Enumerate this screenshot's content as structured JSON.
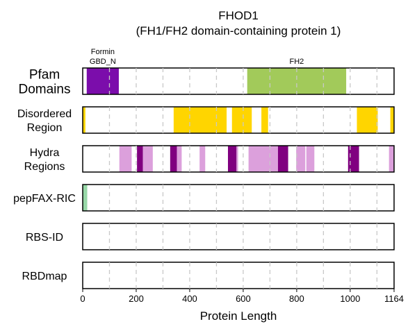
{
  "chart_data": {
    "type": "bar",
    "title": "FHOD1",
    "subtitle": "(FH1/FH2 domain-containing protein 1)",
    "xlabel": "Protein Length",
    "xlim": [
      0,
      1164
    ],
    "x_ticks": [
      "0",
      "200",
      "400",
      "600",
      "800",
      "1000",
      "1164"
    ],
    "x_tick_values": [
      0,
      200,
      400,
      600,
      800,
      1000,
      1164
    ],
    "grid_values": [
      100,
      200,
      300,
      400,
      500,
      600,
      700,
      800,
      900,
      1000,
      1100
    ],
    "grid": true,
    "tracks": [
      {
        "label_lines": [
          "Pfam",
          "Domains"
        ],
        "large": true,
        "segments": [
          {
            "start": 15,
            "end": 135,
            "color": "#7B0DAB",
            "label_lines": [
              "Formin",
              "GBD_N"
            ]
          },
          {
            "start": 615,
            "end": 985,
            "color": "#A2CA5A",
            "label_lines": [
              "FH2"
            ]
          }
        ]
      },
      {
        "label_lines": [
          "Disordered",
          "Region"
        ],
        "segments": [
          {
            "start": 0,
            "end": 10,
            "color": "#FFD500"
          },
          {
            "start": 340,
            "end": 538,
            "color": "#FFD500"
          },
          {
            "start": 558,
            "end": 632,
            "color": "#FFD500"
          },
          {
            "start": 668,
            "end": 693,
            "color": "#FFD500"
          },
          {
            "start": 1025,
            "end": 1103,
            "color": "#FFD500"
          },
          {
            "start": 1150,
            "end": 1164,
            "color": "#FFD500"
          }
        ]
      },
      {
        "label_lines": [
          "Hydra",
          "Regions"
        ],
        "segments": [
          {
            "start": 137,
            "end": 183,
            "color": "#DCA0DC"
          },
          {
            "start": 203,
            "end": 225,
            "color": "#800080"
          },
          {
            "start": 225,
            "end": 262,
            "color": "#DCA0DC"
          },
          {
            "start": 327,
            "end": 352,
            "color": "#800080"
          },
          {
            "start": 352,
            "end": 370,
            "color": "#DCA0DC"
          },
          {
            "start": 437,
            "end": 458,
            "color": "#DCA0DC"
          },
          {
            "start": 543,
            "end": 575,
            "color": "#800080"
          },
          {
            "start": 575,
            "end": 581,
            "color": "#DCA0DC"
          },
          {
            "start": 620,
            "end": 730,
            "color": "#DCA0DC"
          },
          {
            "start": 730,
            "end": 768,
            "color": "#800080"
          },
          {
            "start": 798,
            "end": 832,
            "color": "#DCA0DC"
          },
          {
            "start": 836,
            "end": 866,
            "color": "#DCA0DC"
          },
          {
            "start": 992,
            "end": 1033,
            "color": "#800080"
          },
          {
            "start": 1145,
            "end": 1164,
            "color": "#DCA0DC"
          }
        ]
      },
      {
        "label_lines": [
          "pepFAX-RIC"
        ],
        "segments": [
          {
            "start": 0,
            "end": 17,
            "color": "#98D8A8"
          }
        ]
      },
      {
        "label_lines": [
          "RBS-ID"
        ],
        "segments": []
      },
      {
        "label_lines": [
          "RBDmap"
        ],
        "segments": []
      }
    ]
  }
}
